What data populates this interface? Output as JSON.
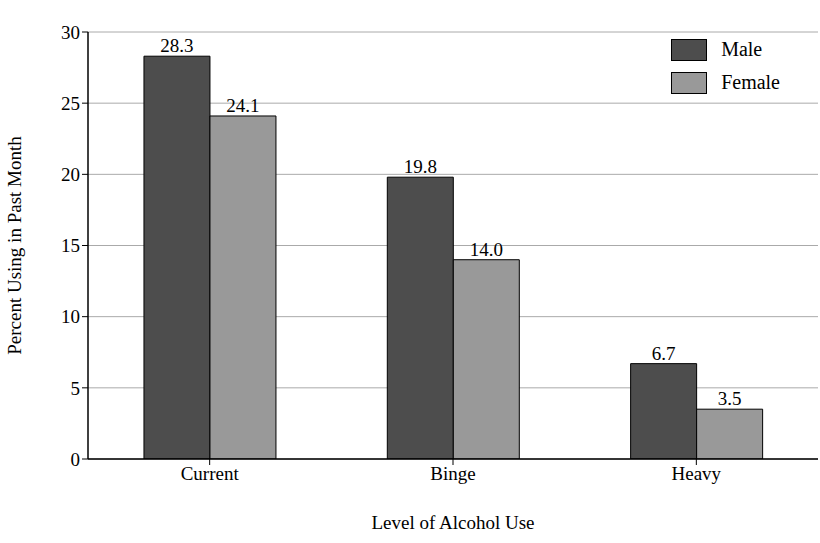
{
  "chart_data": {
    "type": "bar",
    "x_label": "Level of Alcohol Use",
    "y_label": "Percent Using in Past Month",
    "categories": [
      "Current",
      "Binge",
      "Heavy"
    ],
    "series": [
      {
        "name": "Male",
        "color": "#4d4d4d",
        "values": [
          28.3,
          19.8,
          6.7
        ],
        "value_labels": [
          "28.3",
          "19.8",
          "6.7"
        ]
      },
      {
        "name": "Female",
        "color": "#999999",
        "values": [
          24.1,
          14.0,
          3.5
        ],
        "value_labels": [
          "24.1",
          "14.0",
          "3.5"
        ]
      }
    ],
    "ylim": [
      0,
      30
    ],
    "yticks": [
      0,
      5,
      10,
      15,
      20,
      25,
      30
    ],
    "grid": true,
    "legend": "upper right",
    "data_labels": true
  }
}
